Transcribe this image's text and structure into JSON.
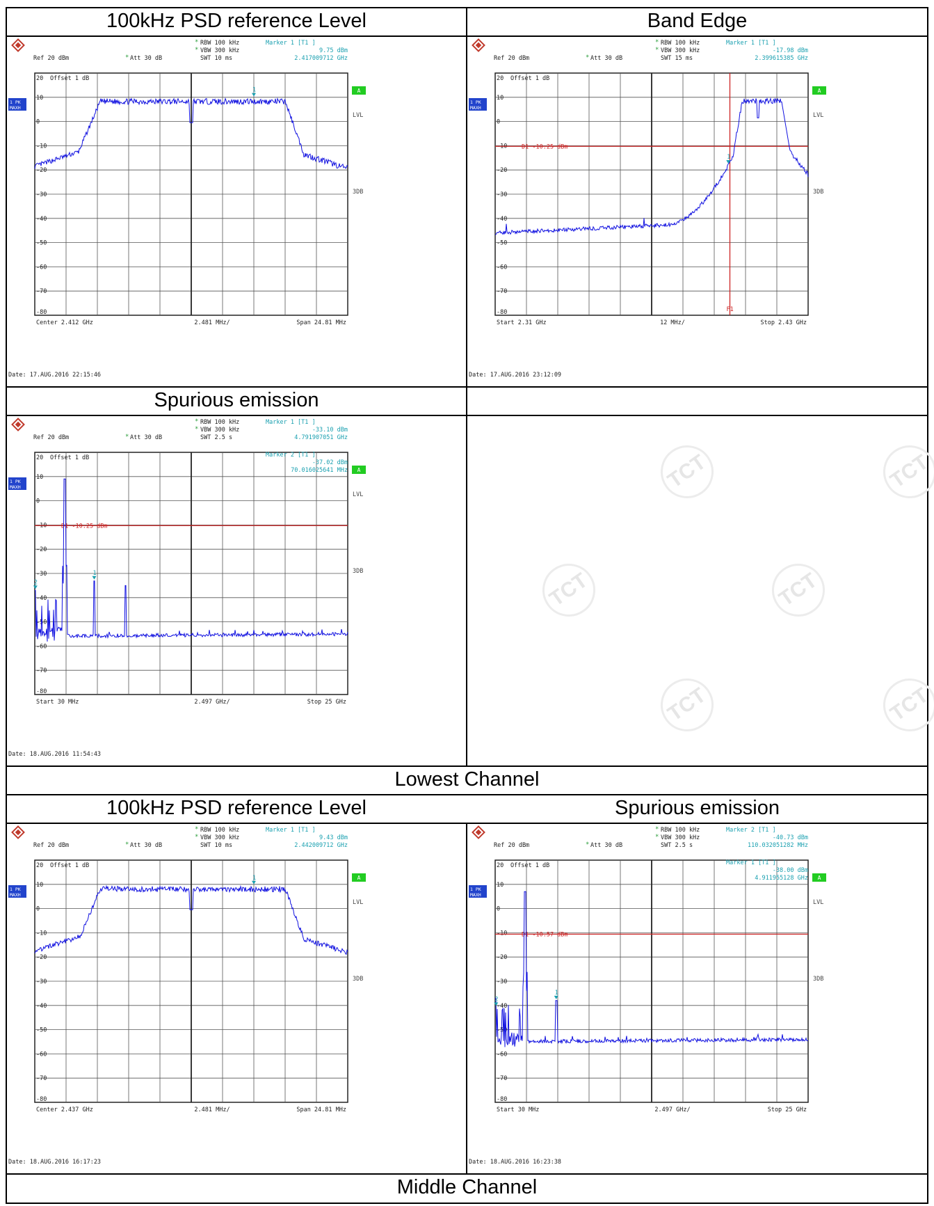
{
  "titles": {
    "r1_left": "100kHz PSD reference Level",
    "r1_right": "Band Edge",
    "r2_left": "Spurious emission",
    "lowest": "Lowest Channel",
    "r3_left": "100kHz PSD reference Level",
    "r3_right": "Spurious emission",
    "middle": "Middle Channel"
  },
  "watermark_text": "TCT",
  "colors": {
    "trace": "#1010e0",
    "text_cyan": "#1aa0b0",
    "limit": "#cc2222",
    "badge_green": "#22cc22",
    "badge_blue": "#2244cc"
  },
  "chart_data": [
    {
      "type": "line",
      "title": "100kHz PSD reference Level",
      "header": {
        "rbw": "RBW 100 kHz",
        "vbw": "VBW 300 kHz",
        "swt": "SWT 10 ms",
        "ref": "Ref  20 dBm",
        "att": "Att  30 dB",
        "offset": "Offset   1 dB",
        "marker_lines": [
          "Marker 1 [T1 ]",
          "9.75 dBm",
          "2.417009712 GHz"
        ],
        "badge": "1 PK\nMAXH"
      },
      "footer": {
        "left": "Center  2.412 GHz",
        "mid": "2.481 MHz/",
        "right": "Span  24.81 MHz"
      },
      "date": "Date: 17.AUG.2016  22:15:46",
      "side_labels": [
        "A",
        "LVL",
        "3DB"
      ],
      "ylim": [
        -80,
        20
      ],
      "y_ticks": [
        "20",
        "10",
        "0",
        "-10",
        "-20",
        "-30",
        "-40",
        "-50",
        "-60",
        "-70",
        "-80"
      ],
      "trace": {
        "shape": "psd",
        "start_y": -18.5,
        "end_y": -19.5,
        "plateau_y": 8.5,
        "dip_y": -0.5,
        "rise": [
          1.4,
          2.1
        ],
        "fall": [
          8.0,
          8.6
        ]
      },
      "markers": [
        {
          "label": "1",
          "x_div": 7.0,
          "y": 9.75
        }
      ]
    },
    {
      "type": "line",
      "title": "Band Edge",
      "header": {
        "rbw": "RBW 100 kHz",
        "vbw": "VBW 300 kHz",
        "swt": "SWT 15 ms",
        "ref": "Ref  20 dBm",
        "att": "Att  30 dB",
        "offset": "Offset   1 dB",
        "marker_lines": [
          "Marker 1 [T1 ]",
          "-17.98 dBm",
          "2.399615385 GHz"
        ],
        "badge": "1 PK\nMAXH"
      },
      "footer": {
        "left": "Start  2.31 GHz",
        "mid": "12 MHz/",
        "right": "Stop  2.43 GHz"
      },
      "date": "Date: 17.AUG.2016  23:12:09",
      "side_labels": [
        "A",
        "LVL",
        "3DB"
      ],
      "ylim": [
        -80,
        20
      ],
      "y_ticks": [
        "20",
        "10",
        "0",
        "-10",
        "-20",
        "-30",
        "-40",
        "-50",
        "-60",
        "-70",
        "-80"
      ],
      "limit_line": {
        "y": -10.25,
        "label": "D1  -10.25 dBm"
      },
      "vertical_line": {
        "x_div": 7.5,
        "label": "F1"
      },
      "trace": {
        "shape": "bandedge",
        "floor_y": -46
      },
      "markers": [
        {
          "label": "1",
          "x_div": 7.45,
          "y": -17.98
        }
      ]
    },
    {
      "type": "line",
      "title": "Spurious emission",
      "header": {
        "rbw": "RBW 100 kHz",
        "vbw": "VBW 300 kHz",
        "swt": "SWT 2.5 s",
        "ref": "Ref  20 dBm",
        "att": "Att  30 dB",
        "offset": "Offset   1 dB",
        "marker_lines": [
          "Marker 1 [T1 ]",
          "-33.10 dBm",
          "4.791907051 GHz"
        ],
        "marker2_lines": [
          "Marker 2 [T1 ]",
          "-37.02 dBm",
          "70.016025641 MHz"
        ],
        "badge": "1 PK\nMAXH"
      },
      "footer": {
        "left": "Start  30 MHz",
        "mid": "2.497 GHz/",
        "right": "Stop  25 GHz"
      },
      "date": "Date: 18.AUG.2016  11:54:43",
      "side_labels": [
        "A",
        "LVL",
        "3DB"
      ],
      "ylim": [
        -80,
        20
      ],
      "y_ticks": [
        "20",
        "10",
        "0",
        "-10",
        "-20",
        "-30",
        "-40",
        "-50",
        "-60",
        "-70",
        "-80"
      ],
      "limit_line": {
        "y": -10.25,
        "label": "D1  -10.25 dBm"
      },
      "trace": {
        "shape": "spurious",
        "floor_y": -56,
        "main_peak": {
          "x_div": 0.95,
          "y": 9
        },
        "harm_peak": {
          "x_div": 1.9,
          "y": -33.1
        },
        "third_peak": {
          "x_div": 2.9,
          "y": -35
        }
      },
      "markers": [
        {
          "label": "1",
          "x_div": 1.9,
          "y": -33.1
        },
        {
          "label": "2",
          "x_div": 0.02,
          "y": -37.02
        }
      ]
    },
    {
      "type": "line",
      "title": "100kHz PSD reference Level",
      "header": {
        "rbw": "RBW 100 kHz",
        "vbw": "VBW 300 kHz",
        "swt": "SWT 10 ms",
        "ref": "Ref  20 dBm",
        "att": "Att  30 dB",
        "offset": "Offset   1 dB",
        "marker_lines": [
          "Marker 1 [T1 ]",
          "9.43 dBm",
          "2.442009712 GHz"
        ],
        "badge": "1 PK\nMAXH"
      },
      "footer": {
        "left": "Center  2.437 GHz",
        "mid": "2.481 MHz/",
        "right": "Span  24.81 MHz"
      },
      "date": "Date: 18.AUG.2016  16:17:23",
      "side_labels": [
        "A",
        "LVL",
        "3DB"
      ],
      "ylim": [
        -80,
        20
      ],
      "y_ticks": [
        "20",
        "10",
        "0",
        "-10",
        "-20",
        "-30",
        "-40",
        "-50",
        "-60",
        "-70",
        "-80"
      ],
      "trace": {
        "shape": "psd",
        "start_y": -17.5,
        "end_y": -18.5,
        "plateau_y": 8.3,
        "dip_y": -0.5,
        "rise": [
          1.45,
          2.1
        ],
        "fall": [
          8.0,
          8.6
        ]
      },
      "markers": [
        {
          "label": "1",
          "x_div": 7.0,
          "y": 9.43
        }
      ]
    },
    {
      "type": "line",
      "title": "Spurious emission",
      "header": {
        "rbw": "RBW 100 kHz",
        "vbw": "VBW 300 kHz",
        "swt": "SWT 2.5 s",
        "ref": "Ref  20 dBm",
        "att": "Att  30 dB",
        "offset": "Offset   1 dB",
        "marker_lines": [
          "Marker 2 [T1 ]",
          "-40.73 dBm",
          "110.032051282 MHz"
        ],
        "marker2_lines": [
          "Marker 1 [T1 ]",
          "-38.00 dBm",
          "4.911955128 GHz"
        ],
        "badge": "1 PK\nMAXH"
      },
      "footer": {
        "left": "Start  30 MHz",
        "mid": "2.497 GHz/",
        "right": "Stop  25 GHz"
      },
      "date": "Date: 18.AUG.2016  16:23:38",
      "side_labels": [
        "A",
        "LVL",
        "3DB"
      ],
      "ylim": [
        -80,
        20
      ],
      "y_ticks": [
        "20",
        "10",
        "0",
        "-10",
        "-20",
        "-30",
        "-40",
        "-50",
        "-60",
        "-70",
        "-80"
      ],
      "limit_line": {
        "y": -10.57,
        "label": "D1  -10.57 dBm"
      },
      "trace": {
        "shape": "spurious",
        "floor_y": -55,
        "main_peak": {
          "x_div": 0.95,
          "y": 7
        },
        "harm_peak": {
          "x_div": 1.95,
          "y": -38
        },
        "third_peak": null
      },
      "markers": [
        {
          "label": "1",
          "x_div": 1.95,
          "y": -38.0
        },
        {
          "label": "2",
          "x_div": 0.03,
          "y": -40.73
        }
      ]
    }
  ]
}
